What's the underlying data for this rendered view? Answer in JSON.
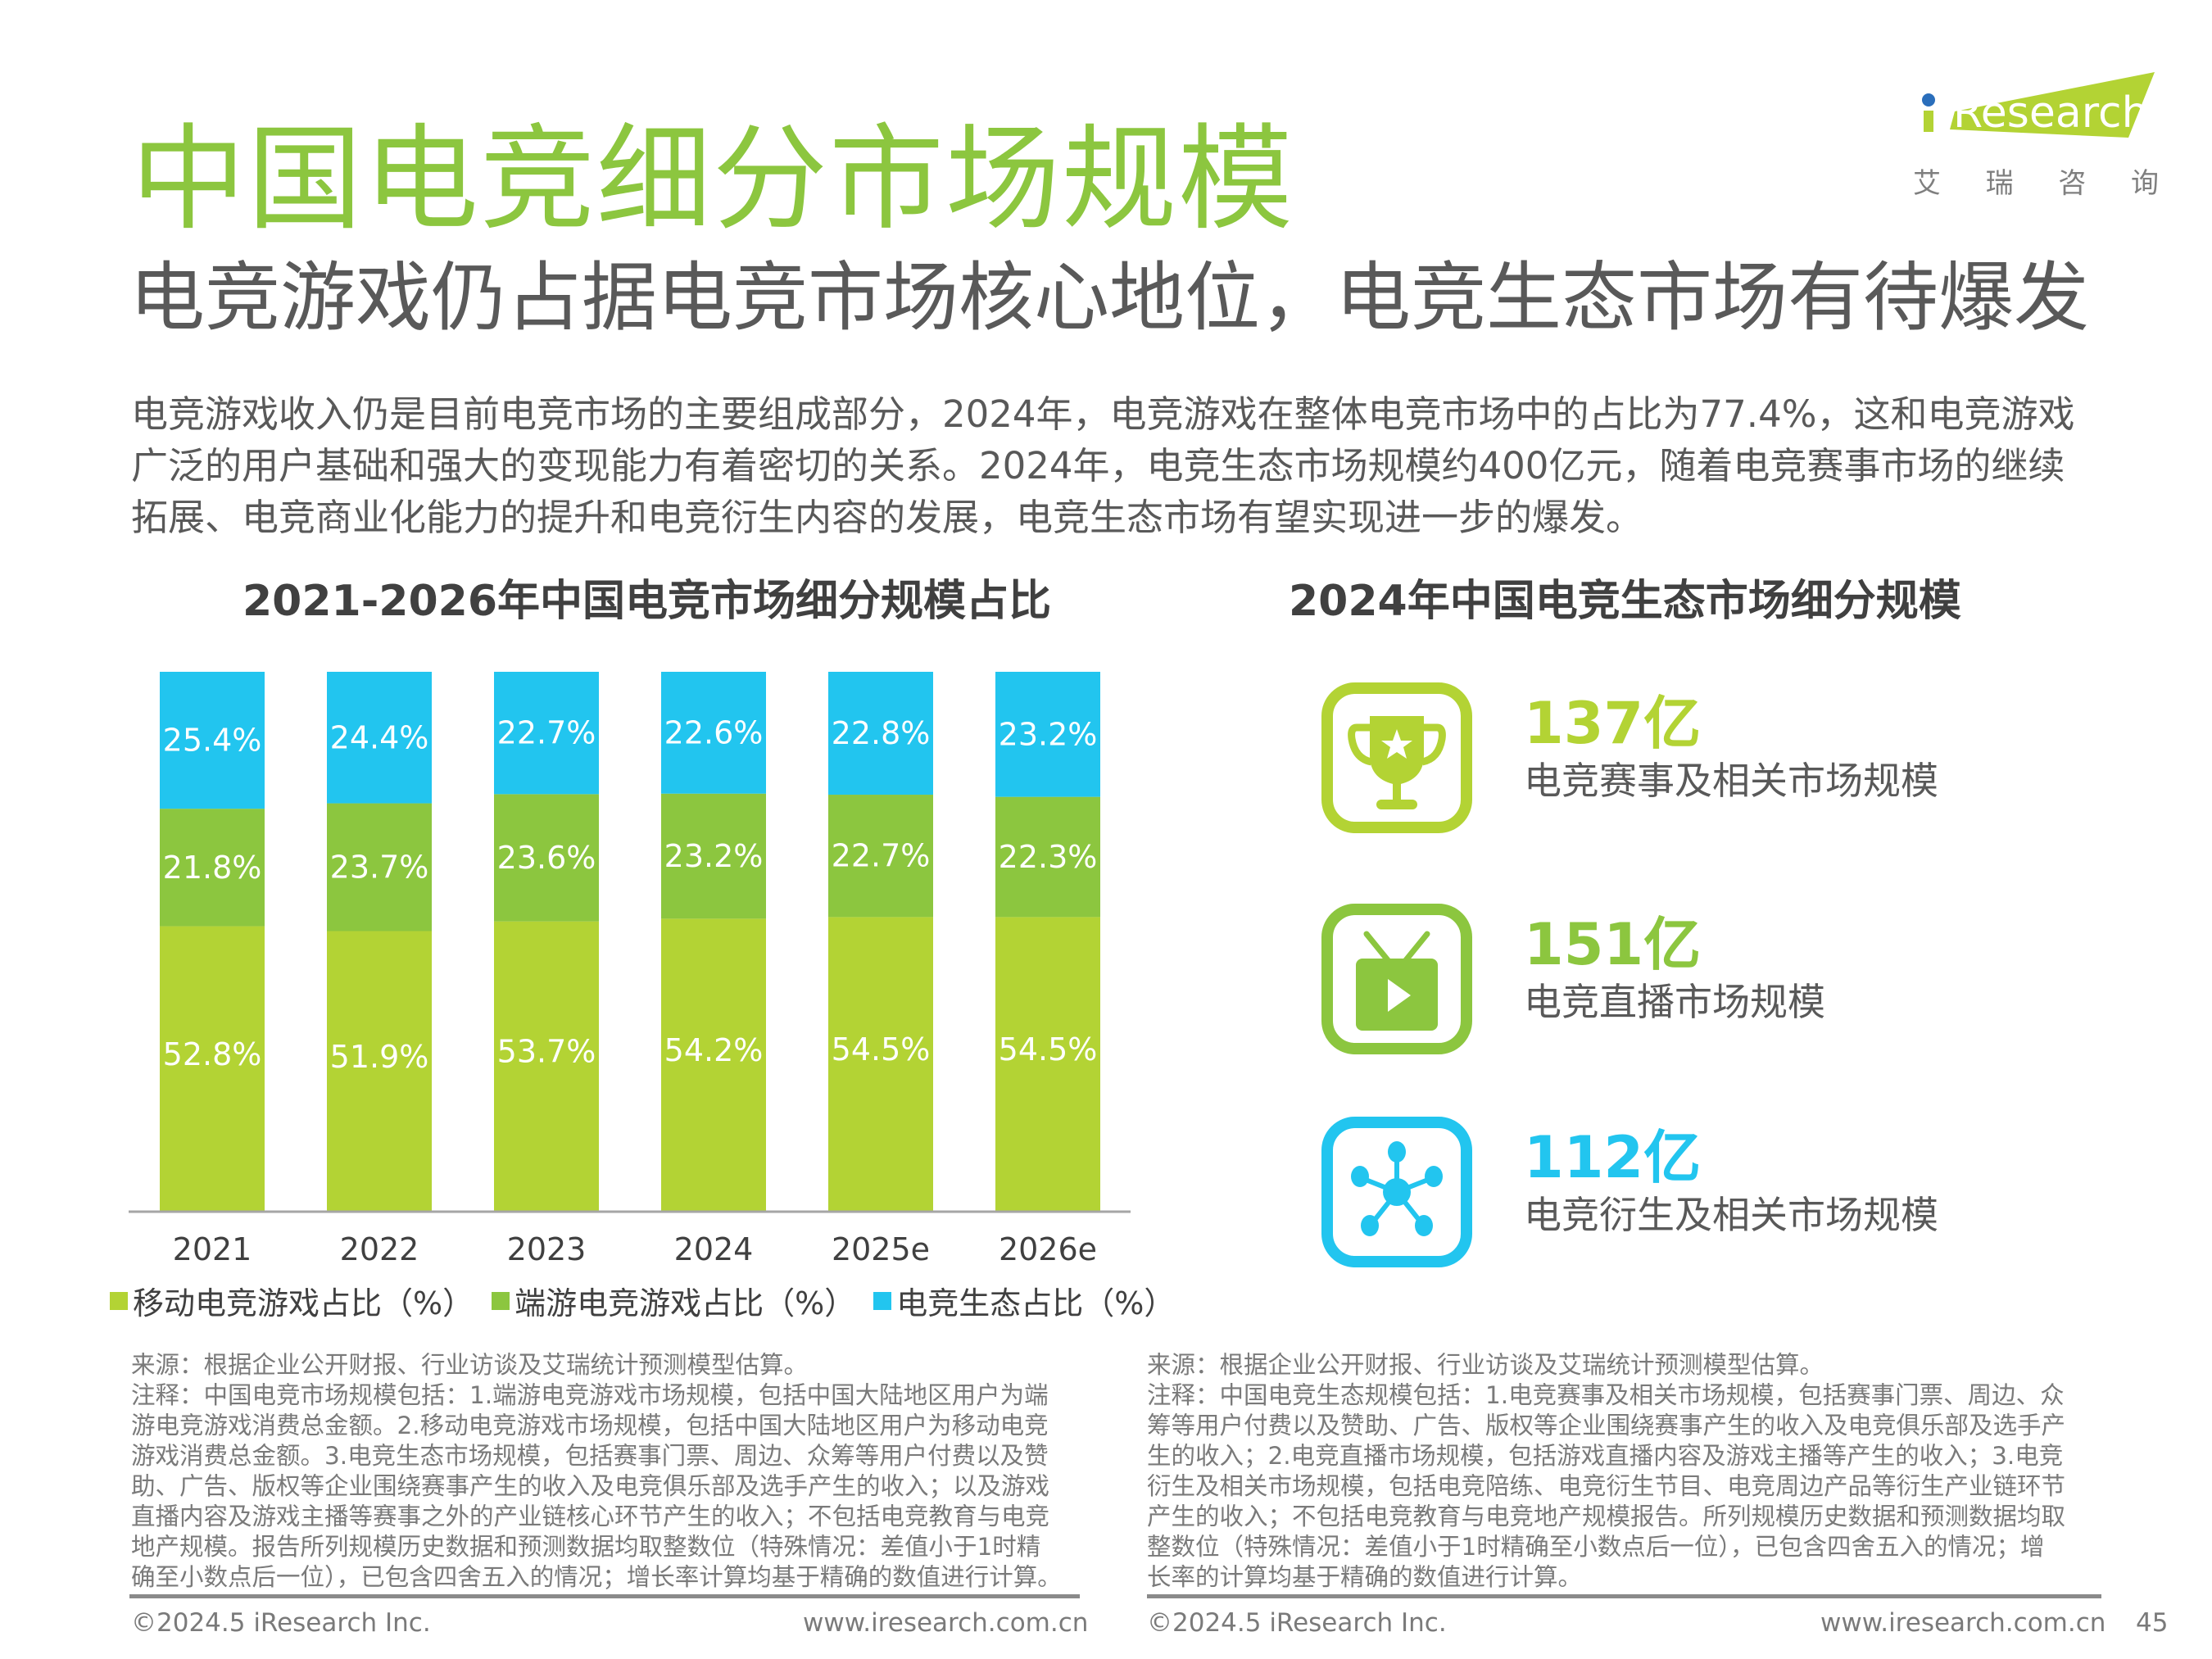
{
  "header": {
    "title": "中国电竞细分市场规模",
    "subtitle": "电竞游戏仍占据电竞市场核心地位，电竞生态市场有待爆发",
    "body": "电竞游戏收入仍是目前电竞市场的主要组成部分，2024年，电竞游戏在整体电竞市场中的占比为77.4%，这和电竞游戏广泛的用户基础和强大的变现能力有着密切的关系。2024年，电竞生态市场规模约400亿元，随着电竞赛事市场的继续拓展、电竞商业化能力的提升和电竞衍生内容的发展，电竞生态市场有望实现进一步的爆发。"
  },
  "logo": {
    "text": "iResearch",
    "cn": [
      "艾",
      "瑞",
      "咨",
      "询"
    ],
    "accent": "#b3d334",
    "dot": "#2a6ebb"
  },
  "colors": {
    "title_green": "#8cc63f",
    "mobile": "#b3d334",
    "pc": "#8cc63f",
    "eco": "#22c5ef"
  },
  "chart_data": [
    {
      "type": "bar",
      "stacked": true,
      "title": "2021-2026年中国电竞市场细分规模占比",
      "categories": [
        "2021",
        "2022",
        "2023",
        "2024",
        "2025e",
        "2026e"
      ],
      "series": [
        {
          "name": "移动电竞游戏占比（%）",
          "color": "#b3d334",
          "values": [
            52.8,
            51.9,
            53.7,
            54.2,
            54.5,
            54.5
          ],
          "labels": [
            "52.8%",
            "51.9%",
            "53.7%",
            "54.2%",
            "54.5%",
            "54.5%"
          ]
        },
        {
          "name": "端游电竞游戏占比（%）",
          "color": "#8cc63f",
          "values": [
            21.8,
            23.7,
            23.6,
            23.2,
            22.7,
            22.3
          ],
          "labels": [
            "21.8%",
            "23.7%",
            "23.6%",
            "23.2%",
            "22.7%",
            "22.3%"
          ]
        },
        {
          "name": "电竞生态占比（%）",
          "color": "#22c5ef",
          "values": [
            25.4,
            24.4,
            22.7,
            22.6,
            22.8,
            23.2
          ],
          "labels": [
            "25.4%",
            "24.4%",
            "22.7%",
            "22.6%",
            "22.8%",
            "23.2%"
          ]
        }
      ],
      "ylim": [
        0,
        100
      ],
      "legend": "bottom",
      "grid": false
    },
    {
      "type": "table",
      "title": "2024年中国电竞生态市场细分规模",
      "rows": [
        {
          "value": "137亿",
          "amount": 137,
          "label": "电竞赛事及相关市场规模",
          "icon": "trophy-icon",
          "color": "#b3d334"
        },
        {
          "value": "151亿",
          "amount": 151,
          "label": "电竞直播市场规模",
          "icon": "tv-play-icon",
          "color": "#8cc63f"
        },
        {
          "value": "112亿",
          "amount": 112,
          "label": "电竞衍生及相关市场规模",
          "icon": "network-icon",
          "color": "#22c5ef"
        }
      ]
    }
  ],
  "footnotes": {
    "left": [
      "来源：根据企业公开财报、行业访谈及艾瑞统计预测模型估算。",
      "注释：中国电竞市场规模包括：1.端游电竞游戏市场规模，包括中国大陆地区用户为端",
      "游电竞游戏消费总金额。2.移动电竞游戏市场规模，包括中国大陆地区用户为移动电竞",
      "游戏消费总金额。3.电竞生态市场规模，包括赛事门票、周边、众筹等用户付费以及赞",
      "助、广告、版权等企业围绕赛事产生的收入及电竞俱乐部及选手产生的收入；以及游戏",
      "直播内容及游戏主播等赛事之外的产业链核心环节产生的收入；不包括电竞教育与电竞",
      "地产规模。报告所列规模历史数据和预测数据均取整数位（特殊情况：差值小于1时精",
      "确至小数点后一位），已包含四舍五入的情况；增长率计算均基于精确的数值进行计算。"
    ],
    "right": [
      "来源：根据企业公开财报、行业访谈及艾瑞统计预测模型估算。",
      "注释：中国电竞生态规模包括：1.电竞赛事及相关市场规模，包括赛事门票、周边、众",
      "筹等用户付费以及赞助、广告、版权等企业围绕赛事产生的收入及电竞俱乐部及选手产",
      "生的收入；2.电竞直播市场规模，包括游戏直播内容及游戏主播等产生的收入；3.电竞",
      "衍生及相关市场规模，包括电竞陪练、电竞衍生节目、电竞周边产品等衍生产业链环节",
      "产生的收入；不包括电竞教育与电竞地产规模报告。所列规模历史数据和预测数据均取",
      "整数位（特殊情况：差值小于1时精确至小数点后一位），已包含四舍五入的情况；增",
      "长率的计算均基于精确的数值进行计算。"
    ]
  },
  "footer": {
    "copyright_left": "©2024.5 iResearch Inc.",
    "url_left": "www.iresearch.com.cn",
    "copyright_right": "©2024.5 iResearch Inc.",
    "url_right": "www.iresearch.com.cn",
    "page_number": "45"
  }
}
